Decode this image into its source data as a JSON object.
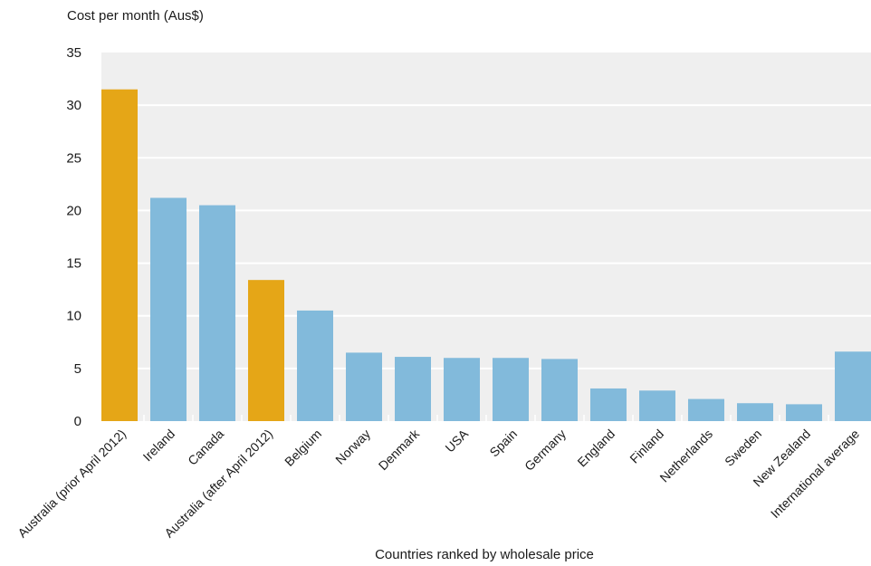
{
  "chart_data": {
    "type": "bar",
    "ylabel": "Cost per month (Aus$)",
    "xlabel": "Countries ranked by wholesale price",
    "ylim": [
      0,
      35
    ],
    "yticks": [
      0,
      5,
      10,
      15,
      20,
      25,
      30,
      35
    ],
    "grid": true,
    "legend": "none",
    "colors": {
      "highlight": "#E5A617",
      "default": "#82BADB",
      "plot_background": "#EFEFEF",
      "gridline": "#FFFFFF"
    },
    "categories": [
      "Australia (prior April 2012)",
      "Ireland",
      "Canada",
      "Australia (after April 2012)",
      "Belgium",
      "Norway",
      "Denmark",
      "USA",
      "Spain",
      "Germany",
      "England",
      "Finland",
      "Netherlands",
      "Sweden",
      "New Zealand",
      "International average"
    ],
    "values": [
      31.5,
      21.2,
      20.5,
      13.4,
      10.5,
      6.5,
      6.1,
      6.0,
      6.0,
      5.9,
      3.1,
      2.9,
      2.1,
      1.7,
      1.6,
      6.6
    ],
    "highlighted": [
      true,
      false,
      false,
      true,
      false,
      false,
      false,
      false,
      false,
      false,
      false,
      false,
      false,
      false,
      false,
      false
    ]
  }
}
